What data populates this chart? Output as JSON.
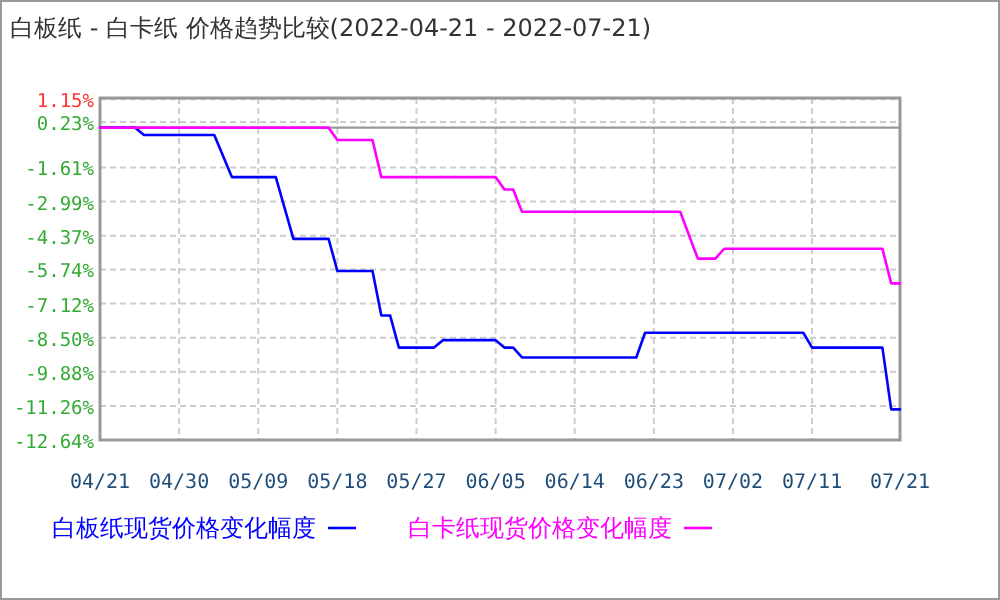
{
  "chart_data": {
    "type": "line",
    "title": "白板纸 - 白卡纸 价格趋势比较(2022-04-21 - 2022-07-21)",
    "xlim": [
      "2022-04-21",
      "2022-07-21"
    ],
    "xticks": [
      {
        "value": "2022-04-21",
        "label": "04/21"
      },
      {
        "value": "2022-04-30",
        "label": "04/30"
      },
      {
        "value": "2022-05-09",
        "label": "05/09"
      },
      {
        "value": "2022-05-18",
        "label": "05/18"
      },
      {
        "value": "2022-05-27",
        "label": "05/27"
      },
      {
        "value": "2022-06-05",
        "label": "06/05"
      },
      {
        "value": "2022-06-14",
        "label": "06/14"
      },
      {
        "value": "2022-06-23",
        "label": "06/23"
      },
      {
        "value": "2022-07-02",
        "label": "07/02"
      },
      {
        "value": "2022-07-11",
        "label": "07/11"
      },
      {
        "value": "2022-07-21",
        "label": "07/21"
      }
    ],
    "ylim": [
      -12.64,
      1.2
    ],
    "yticks": [
      {
        "value": 1.15,
        "label": "1.15%"
      },
      {
        "value": 0.23,
        "label": "0.23%"
      },
      {
        "value": -1.61,
        "label": "-1.61%"
      },
      {
        "value": -2.99,
        "label": "-2.99%"
      },
      {
        "value": -4.37,
        "label": "-4.37%"
      },
      {
        "value": -5.74,
        "label": "-5.74%"
      },
      {
        "value": -7.12,
        "label": "-7.12%"
      },
      {
        "value": -8.5,
        "label": "-8.50%"
      },
      {
        "value": -9.88,
        "label": "-9.88%"
      },
      {
        "value": -11.26,
        "label": "-11.26%"
      },
      {
        "value": -12.64,
        "label": "-12.64%"
      }
    ],
    "grid": true,
    "legend": "bottom",
    "marker": "none",
    "line_style": "solid",
    "ref_lines": [
      {
        "axis": "y",
        "value": 0,
        "color": "#999999"
      }
    ],
    "series": [
      {
        "name": "白板纸现货价格变化幅度",
        "color": "#0000ff",
        "x": [
          "2022-04-21",
          "2022-04-25",
          "2022-04-26",
          "2022-05-04",
          "2022-05-06",
          "2022-05-11",
          "2022-05-13",
          "2022-05-17",
          "2022-05-18",
          "2022-05-22",
          "2022-05-23",
          "2022-05-24",
          "2022-05-25",
          "2022-05-29",
          "2022-05-30",
          "2022-06-05",
          "2022-06-06",
          "2022-06-07",
          "2022-06-08",
          "2022-06-21",
          "2022-06-22",
          "2022-07-10",
          "2022-07-11",
          "2022-07-19",
          "2022-07-20",
          "2022-07-21"
        ],
        "values": [
          0,
          0,
          -0.3,
          -0.3,
          -2.0,
          -2.0,
          -4.5,
          -4.5,
          -5.8,
          -5.8,
          -7.6,
          -7.6,
          -8.9,
          -8.9,
          -8.6,
          -8.6,
          -8.9,
          -8.9,
          -9.3,
          -9.3,
          -8.3,
          -8.3,
          -8.9,
          -8.9,
          -11.4,
          -11.4
        ]
      },
      {
        "name": "白卡纸现货价格变化幅度",
        "color": "#ff00ff",
        "x": [
          "2022-04-21",
          "2022-05-17",
          "2022-05-18",
          "2022-05-22",
          "2022-05-23",
          "2022-06-05",
          "2022-06-06",
          "2022-06-07",
          "2022-06-08",
          "2022-06-26",
          "2022-06-28",
          "2022-06-30",
          "2022-07-01",
          "2022-07-19",
          "2022-07-20",
          "2022-07-21"
        ],
        "values": [
          0,
          0,
          -0.5,
          -0.5,
          -2.0,
          -2.0,
          -2.5,
          -2.5,
          -3.4,
          -3.4,
          -5.3,
          -5.3,
          -4.9,
          -4.9,
          -6.3,
          -6.3
        ]
      }
    ]
  }
}
